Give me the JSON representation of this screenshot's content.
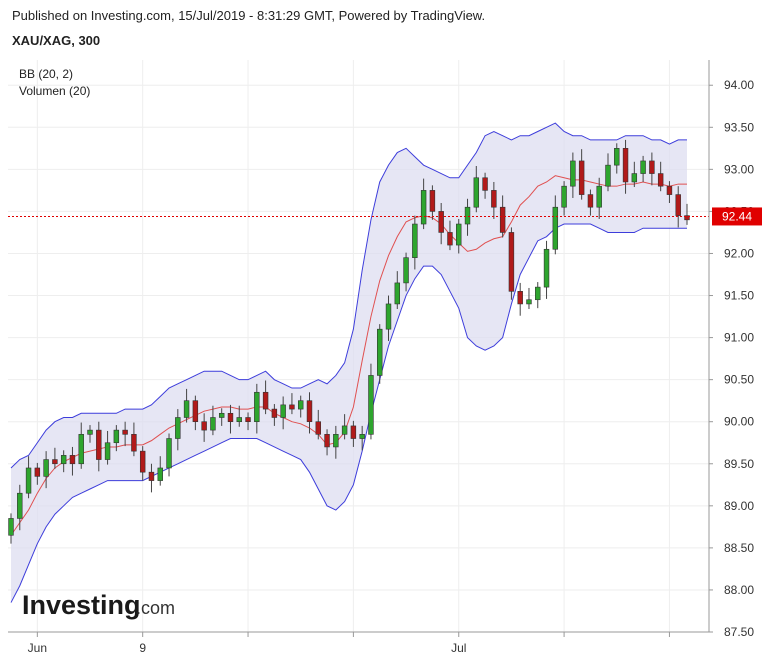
{
  "header": {
    "published": "Published on Investing.com, 15/Jul/2019 - 8:31:29 GMT, Powered by TradingView.",
    "symbol": "XAU/XAG, 300"
  },
  "indicators": {
    "bb": "BB (20, 2)",
    "volume": "Volumen (20)"
  },
  "logo": {
    "main": "Investing",
    "suffix": ".com"
  },
  "colors": {
    "up": "#2ea52e",
    "down": "#b11a1a",
    "band_fill": "#dcdcf0",
    "band_line": "#3d3ddb",
    "mid_line": "#e05050",
    "last_price": "#e00000",
    "grid": "#eeeeee"
  },
  "chart_data": {
    "type": "candlestick",
    "ylim": [
      87.5,
      94.3
    ],
    "y_ticks": [
      "94.00",
      "93.50",
      "93.00",
      "92.50",
      "92.00",
      "91.50",
      "91.00",
      "90.50",
      "90.00",
      "89.50",
      "89.00",
      "88.50",
      "88.00",
      "87.50"
    ],
    "x_ticks": [
      {
        "label": "Jun",
        "index": 3
      },
      {
        "label": "9",
        "index": 15
      },
      {
        "label": "",
        "index": 27
      },
      {
        "label": "",
        "index": 39
      },
      {
        "label": "Jul",
        "index": 51
      },
      {
        "label": "",
        "index": 63
      },
      {
        "label": "",
        "index": 75
      }
    ],
    "last_price": "92.44",
    "grid": true,
    "n_candles": 78,
    "close": [
      88.85,
      89.15,
      89.45,
      89.35,
      89.55,
      89.5,
      89.6,
      89.5,
      89.85,
      89.9,
      89.55,
      89.75,
      89.9,
      89.85,
      89.65,
      89.4,
      89.3,
      89.45,
      89.8,
      90.05,
      90.25,
      90.0,
      89.9,
      90.05,
      90.1,
      90.0,
      90.05,
      90.0,
      90.35,
      90.15,
      90.05,
      90.2,
      90.15,
      90.25,
      90.0,
      89.85,
      89.7,
      89.85,
      89.95,
      89.8,
      89.85,
      90.55,
      91.1,
      91.4,
      91.65,
      91.95,
      92.35,
      92.75,
      92.5,
      92.25,
      92.1,
      92.35,
      92.55,
      92.9,
      92.75,
      92.55,
      92.25,
      91.55,
      91.4,
      91.45,
      91.6,
      92.05,
      92.55,
      92.8,
      93.1,
      92.7,
      92.55,
      92.8,
      93.05,
      93.25,
      92.85,
      92.95,
      93.1,
      92.95,
      92.8,
      92.7,
      92.45,
      92.4
    ],
    "upper": [
      89.45,
      89.55,
      89.6,
      89.75,
      89.9,
      90.0,
      90.05,
      90.05,
      90.1,
      90.1,
      90.1,
      90.1,
      90.1,
      90.15,
      90.15,
      90.15,
      90.2,
      90.3,
      90.4,
      90.45,
      90.5,
      90.55,
      90.6,
      90.6,
      90.6,
      90.55,
      90.5,
      90.5,
      90.55,
      90.6,
      90.5,
      90.45,
      90.4,
      90.4,
      90.45,
      90.5,
      90.45,
      90.55,
      90.7,
      91.1,
      91.8,
      92.4,
      92.85,
      93.05,
      93.2,
      93.25,
      93.15,
      93.05,
      93.0,
      92.95,
      92.9,
      92.9,
      93.05,
      93.2,
      93.4,
      93.45,
      93.4,
      93.35,
      93.4,
      93.4,
      93.45,
      93.5,
      93.55,
      93.45,
      93.4,
      93.4,
      93.35,
      93.35,
      93.35,
      93.35,
      93.4,
      93.4,
      93.4,
      93.35,
      93.35,
      93.3,
      93.35,
      93.35
    ],
    "lower": [
      87.85,
      88.05,
      88.3,
      88.55,
      88.75,
      88.9,
      89.0,
      89.1,
      89.15,
      89.2,
      89.25,
      89.3,
      89.3,
      89.3,
      89.3,
      89.3,
      89.35,
      89.4,
      89.45,
      89.5,
      89.55,
      89.6,
      89.65,
      89.7,
      89.75,
      89.8,
      89.8,
      89.8,
      89.8,
      89.75,
      89.7,
      89.65,
      89.6,
      89.55,
      89.4,
      89.2,
      89.0,
      88.95,
      89.05,
      89.25,
      89.65,
      90.1,
      90.5,
      90.9,
      91.2,
      91.5,
      91.7,
      91.85,
      91.85,
      91.75,
      91.55,
      91.35,
      91.0,
      90.9,
      90.85,
      90.9,
      91.0,
      91.4,
      91.75,
      91.95,
      92.15,
      92.2,
      92.3,
      92.35,
      92.35,
      92.35,
      92.35,
      92.3,
      92.25,
      92.25,
      92.25,
      92.25,
      92.3,
      92.3,
      92.3,
      92.3,
      92.3,
      92.3
    ]
  }
}
